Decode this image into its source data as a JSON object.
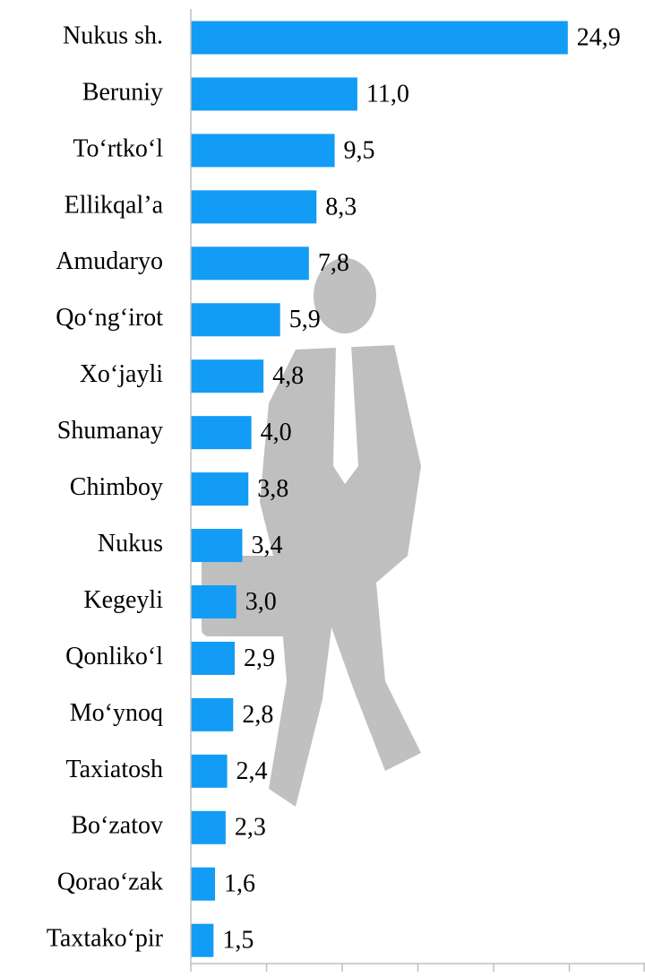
{
  "chart_data": {
    "type": "barh",
    "categories": [
      "Nukus sh.",
      "Beruniy",
      "To‘rtko‘l",
      "Ellikqal’a",
      "Amudaryo",
      "Qo‘ng‘irot",
      "Xo‘jayli",
      "Shumanay",
      "Chimboy",
      "Nukus",
      "Kegeyli",
      "Qonliko‘l",
      "Mo‘ynoq",
      "Taxiatosh",
      "Bo‘zatov",
      "Qorao‘zak",
      "Taxtako‘pir"
    ],
    "values": [
      24.9,
      11.0,
      9.5,
      8.3,
      7.8,
      5.9,
      4.8,
      4.0,
      3.8,
      3.4,
      3.0,
      2.9,
      2.8,
      2.4,
      2.3,
      1.6,
      1.5
    ],
    "value_labels": [
      "24,9",
      "11,0",
      "9,5",
      "8,3",
      "7,8",
      "5,9",
      "4,8",
      "4,0",
      "3,8",
      "3,4",
      "3,0",
      "2,9",
      "2,8",
      "2,4",
      "2,3",
      "1,6",
      "1,5"
    ],
    "color": "#129cf5",
    "xlim": [
      0,
      30
    ],
    "xticks": [
      0,
      5,
      10,
      15,
      20,
      25,
      30
    ]
  }
}
